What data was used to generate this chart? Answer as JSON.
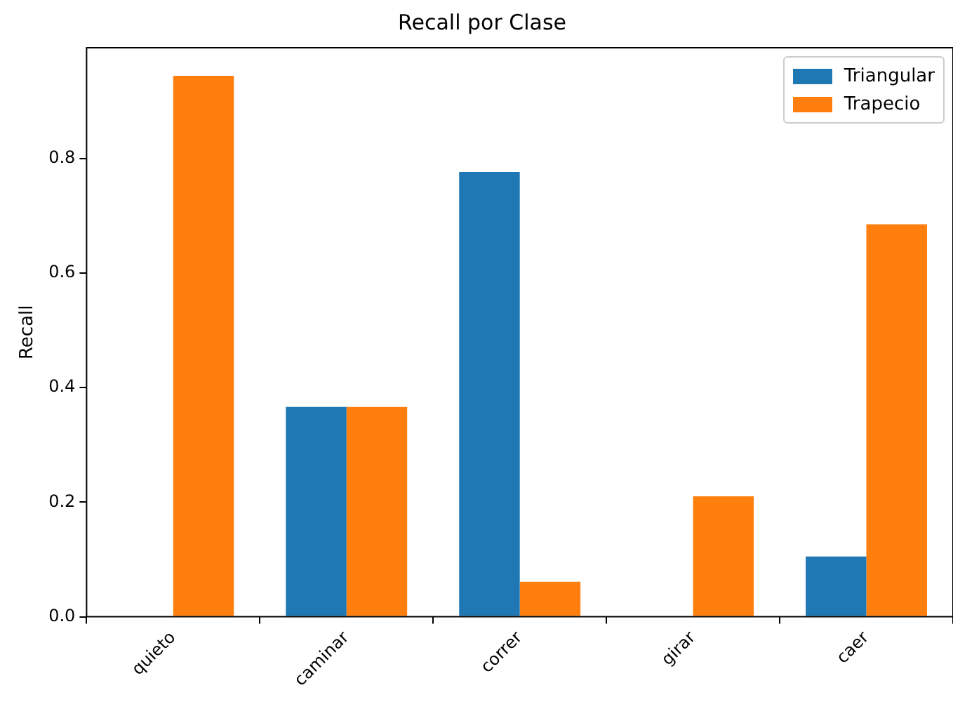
{
  "chart_data": {
    "type": "bar",
    "title": "Recall por Clase",
    "ylabel": "Recall",
    "categories": [
      "quieto",
      "caminar",
      "correr",
      "girar",
      "caer"
    ],
    "series": [
      {
        "name": "Triangular",
        "color": "#1f77b4",
        "values": [
          0,
          0.366,
          0.776,
          0,
          0.105
        ]
      },
      {
        "name": "Trapecio",
        "color": "#ff7f0e",
        "values": [
          0.944,
          0.366,
          0.061,
          0.21,
          0.685
        ]
      }
    ],
    "ylim": [
      0,
      0.993
    ],
    "yticks": [
      {
        "value": 0,
        "label": "0.0"
      },
      {
        "value": 0.2,
        "label": "0.2"
      },
      {
        "value": 0.4,
        "label": "0.4"
      },
      {
        "value": 0.6,
        "label": "0.6"
      },
      {
        "value": 0.8,
        "label": "0.8"
      }
    ],
    "grid": false,
    "legend": "top right"
  }
}
